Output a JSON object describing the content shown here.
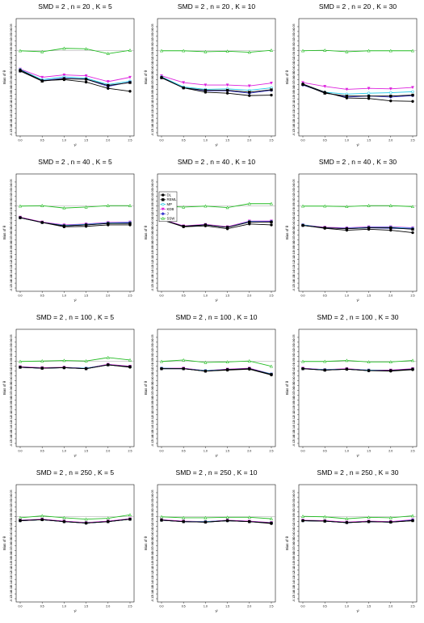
{
  "chart_data": {
    "type": "line",
    "x": [
      0.0,
      0.5,
      1.0,
      1.5,
      2.0,
      2.5
    ],
    "x_tick_labels": [
      "0.0",
      "0.5",
      "1.0",
      "1.5",
      "2.0",
      "2.5"
    ],
    "xlabel": "τ²",
    "ylabel": "Bias of θ",
    "ylim": [
      -0.17,
      0.06
    ],
    "y_ticks": [
      0.05,
      0.04,
      0.03,
      0.02,
      0.01,
      0.0,
      -0.01,
      -0.02,
      -0.03,
      -0.04,
      -0.05,
      -0.06,
      -0.07,
      -0.08,
      -0.09,
      -0.1,
      -0.11,
      -0.12,
      -0.13,
      -0.14,
      -0.15,
      -0.16,
      -0.17
    ],
    "y_tick_labels": [
      "0.05",
      "0.04",
      "0.03",
      "0.02",
      "0.01",
      "0.00",
      "-0.01",
      "-0.02",
      "-0.03",
      "-0.04",
      "-0.05",
      "-0.06",
      "-0.07",
      "-0.08",
      "-0.09",
      "-0.10",
      "-0.11",
      "-0.12",
      "-0.13",
      "-0.14",
      "-0.15",
      "-0.16",
      "-0.17"
    ],
    "reference_line": 0.0,
    "legend": {
      "placement": "left",
      "panel_index": 4,
      "entries": [
        {
          "label": "DL",
          "color": "#000000",
          "marker": "circle"
        },
        {
          "label": "REML",
          "color": "#000000",
          "marker": "square"
        },
        {
          "label": "MP",
          "color": "#1ec8e6",
          "marker": "circle-open"
        },
        {
          "label": "KDB",
          "color": "#dd22dd",
          "marker": "triangle-down"
        },
        {
          "label": "J",
          "color": "#3333cc",
          "marker": "diamond"
        },
        {
          "label": "SSW",
          "color": "#22bb22",
          "marker": "triangle-open"
        }
      ]
    },
    "panels": [
      {
        "title": "SMD = 2 , n = 20 , K = 5",
        "series": [
          {
            "values": [
              -0.04,
              -0.062,
              -0.06,
              -0.065,
              -0.078,
              -0.084
            ]
          },
          {
            "values": [
              -0.042,
              -0.063,
              -0.058,
              -0.059,
              -0.072,
              -0.066
            ]
          },
          {
            "values": [
              -0.039,
              -0.06,
              -0.054,
              -0.057,
              -0.07,
              -0.063
            ]
          },
          {
            "values": [
              -0.038,
              -0.055,
              -0.05,
              -0.052,
              -0.064,
              -0.055
            ]
          },
          {
            "values": [
              -0.042,
              -0.062,
              -0.057,
              -0.059,
              -0.074,
              -0.065
            ]
          },
          {
            "values": [
              0.0,
              -0.002,
              0.005,
              0.004,
              -0.006,
              0.001
            ]
          }
        ]
      },
      {
        "title": "SMD = 2 , n = 20 , K = 10",
        "series": [
          {
            "values": [
              -0.055,
              -0.077,
              -0.086,
              -0.088,
              -0.093,
              -0.092
            ]
          },
          {
            "values": [
              -0.056,
              -0.077,
              -0.082,
              -0.082,
              -0.086,
              -0.081
            ]
          },
          {
            "values": [
              -0.054,
              -0.075,
              -0.08,
              -0.079,
              -0.082,
              -0.077
            ]
          },
          {
            "values": [
              -0.052,
              -0.066,
              -0.071,
              -0.071,
              -0.073,
              -0.067
            ]
          },
          {
            "values": [
              -0.056,
              -0.077,
              -0.083,
              -0.083,
              -0.088,
              -0.082
            ]
          },
          {
            "values": [
              0.0,
              0.0,
              -0.002,
              -0.001,
              -0.003,
              0.001
            ]
          }
        ]
      },
      {
        "title": "SMD = 2 , n = 20 , K = 30",
        "series": [
          {
            "values": [
              -0.069,
              -0.086,
              -0.098,
              -0.099,
              -0.104,
              -0.105
            ]
          },
          {
            "values": [
              -0.07,
              -0.088,
              -0.094,
              -0.094,
              -0.094,
              -0.092
            ]
          },
          {
            "values": [
              -0.069,
              -0.086,
              -0.09,
              -0.088,
              -0.087,
              -0.085
            ]
          },
          {
            "values": [
              -0.066,
              -0.074,
              -0.08,
              -0.078,
              -0.079,
              -0.076
            ]
          },
          {
            "values": [
              -0.071,
              -0.087,
              -0.096,
              -0.094,
              -0.096,
              -0.093
            ]
          },
          {
            "values": [
              0.0,
              0.001,
              -0.002,
              0.0,
              0.0,
              0.0
            ]
          }
        ]
      },
      {
        "title": "SMD = 2 , n = 40 , K = 5",
        "series": [
          {
            "values": [
              -0.024,
              -0.034,
              -0.043,
              -0.042,
              -0.039,
              -0.039
            ]
          },
          {
            "values": [
              -0.024,
              -0.034,
              -0.041,
              -0.039,
              -0.036,
              -0.036
            ]
          },
          {
            "values": [
              -0.024,
              -0.034,
              -0.04,
              -0.038,
              -0.035,
              -0.034
            ]
          },
          {
            "values": [
              -0.023,
              -0.033,
              -0.039,
              -0.037,
              -0.034,
              -0.033
            ]
          },
          {
            "values": [
              -0.024,
              -0.034,
              -0.041,
              -0.039,
              -0.036,
              -0.035
            ]
          },
          {
            "values": [
              0.0,
              0.001,
              -0.004,
              -0.002,
              0.001,
              0.001
            ]
          }
        ]
      },
      {
        "title": "SMD = 2 , n = 40 , K = 10",
        "series": [
          {
            "values": [
              -0.028,
              -0.043,
              -0.041,
              -0.047,
              -0.037,
              -0.039
            ]
          },
          {
            "values": [
              -0.028,
              -0.042,
              -0.039,
              -0.044,
              -0.033,
              -0.033
            ]
          },
          {
            "values": [
              -0.028,
              -0.042,
              -0.039,
              -0.044,
              -0.032,
              -0.032
            ]
          },
          {
            "values": [
              -0.027,
              -0.041,
              -0.038,
              -0.043,
              -0.031,
              -0.031
            ]
          },
          {
            "values": [
              -0.028,
              -0.042,
              -0.039,
              -0.044,
              -0.033,
              -0.032
            ]
          },
          {
            "values": [
              0.0,
              -0.002,
              0.0,
              -0.003,
              0.005,
              0.005
            ]
          }
        ]
      },
      {
        "title": "SMD = 2 , n = 40 , K = 30",
        "series": [
          {
            "values": [
              -0.04,
              -0.046,
              -0.05,
              -0.048,
              -0.05,
              -0.055
            ]
          },
          {
            "values": [
              -0.04,
              -0.045,
              -0.047,
              -0.045,
              -0.045,
              -0.048
            ]
          },
          {
            "values": [
              -0.039,
              -0.045,
              -0.046,
              -0.044,
              -0.044,
              -0.046
            ]
          },
          {
            "values": [
              -0.039,
              -0.044,
              -0.045,
              -0.043,
              -0.043,
              -0.045
            ]
          },
          {
            "values": [
              -0.04,
              -0.045,
              -0.047,
              -0.045,
              -0.046,
              -0.047
            ]
          },
          {
            "values": [
              0.0,
              0.0,
              -0.001,
              0.001,
              0.001,
              -0.001
            ]
          }
        ]
      },
      {
        "title": "SMD = 2 , n = 100 , K = 5",
        "series": [
          {
            "values": [
              -0.012,
              -0.014,
              -0.013,
              -0.015,
              -0.007,
              -0.012
            ]
          },
          {
            "values": [
              -0.012,
              -0.014,
              -0.013,
              -0.015,
              -0.007,
              -0.011
            ]
          },
          {
            "values": [
              -0.012,
              -0.014,
              -0.013,
              -0.014,
              -0.007,
              -0.011
            ]
          },
          {
            "values": [
              -0.011,
              -0.013,
              -0.012,
              -0.014,
              -0.006,
              -0.01
            ]
          },
          {
            "values": [
              -0.012,
              -0.014,
              -0.013,
              -0.015,
              -0.007,
              -0.011
            ]
          },
          {
            "values": [
              0.0,
              0.001,
              0.002,
              0.001,
              0.008,
              0.003
            ]
          }
        ]
      },
      {
        "title": "SMD = 2 , n = 100 , K = 10",
        "series": [
          {
            "values": [
              -0.015,
              -0.015,
              -0.02,
              -0.018,
              -0.016,
              -0.028
            ]
          },
          {
            "values": [
              -0.015,
              -0.015,
              -0.02,
              -0.017,
              -0.015,
              -0.027
            ]
          },
          {
            "values": [
              -0.014,
              -0.015,
              -0.019,
              -0.017,
              -0.015,
              -0.026
            ]
          },
          {
            "values": [
              -0.014,
              -0.014,
              -0.019,
              -0.016,
              -0.014,
              -0.026
            ]
          },
          {
            "values": [
              -0.015,
              -0.015,
              -0.02,
              -0.017,
              -0.015,
              -0.027
            ]
          },
          {
            "values": [
              0.0,
              0.003,
              -0.002,
              -0.001,
              0.001,
              -0.01
            ]
          }
        ]
      },
      {
        "title": "SMD = 2 , n = 100 , K = 30",
        "series": [
          {
            "values": [
              -0.015,
              -0.018,
              -0.016,
              -0.019,
              -0.02,
              -0.017
            ]
          },
          {
            "values": [
              -0.015,
              -0.018,
              -0.016,
              -0.019,
              -0.019,
              -0.016
            ]
          },
          {
            "values": [
              -0.015,
              -0.017,
              -0.016,
              -0.018,
              -0.019,
              -0.016
            ]
          },
          {
            "values": [
              -0.014,
              -0.017,
              -0.015,
              -0.018,
              -0.018,
              -0.015
            ]
          },
          {
            "values": [
              -0.015,
              -0.018,
              -0.016,
              -0.019,
              -0.019,
              -0.016
            ]
          },
          {
            "values": [
              0.0,
              0.0,
              0.002,
              -0.001,
              -0.001,
              0.002
            ]
          }
        ]
      },
      {
        "title": "SMD = 2 , n = 250 , K = 5",
        "series": [
          {
            "values": [
              -0.008,
              -0.006,
              -0.01,
              -0.013,
              -0.01,
              -0.005
            ]
          },
          {
            "values": [
              -0.008,
              -0.006,
              -0.01,
              -0.013,
              -0.01,
              -0.005
            ]
          },
          {
            "values": [
              -0.008,
              -0.006,
              -0.01,
              -0.013,
              -0.01,
              -0.005
            ]
          },
          {
            "values": [
              -0.007,
              -0.005,
              -0.009,
              -0.012,
              -0.009,
              -0.004
            ]
          },
          {
            "values": [
              -0.008,
              -0.006,
              -0.01,
              -0.013,
              -0.01,
              -0.005
            ]
          },
          {
            "values": [
              -0.002,
              0.002,
              -0.002,
              -0.005,
              -0.003,
              0.004
            ]
          }
        ]
      },
      {
        "title": "SMD = 2 , n = 250 , K = 10",
        "series": [
          {
            "values": [
              -0.007,
              -0.01,
              -0.011,
              -0.008,
              -0.01,
              -0.014
            ]
          },
          {
            "values": [
              -0.007,
              -0.01,
              -0.011,
              -0.008,
              -0.01,
              -0.013
            ]
          },
          {
            "values": [
              -0.007,
              -0.01,
              -0.01,
              -0.008,
              -0.01,
              -0.013
            ]
          },
          {
            "values": [
              -0.006,
              -0.009,
              -0.01,
              -0.007,
              -0.009,
              -0.012
            ]
          },
          {
            "values": [
              -0.007,
              -0.01,
              -0.011,
              -0.008,
              -0.01,
              -0.013
            ]
          },
          {
            "values": [
              0.0,
              -0.002,
              -0.002,
              -0.001,
              -0.001,
              -0.004
            ]
          }
        ]
      },
      {
        "title": "SMD = 2 , n = 250 , K = 30",
        "series": [
          {
            "values": [
              -0.008,
              -0.009,
              -0.012,
              -0.01,
              -0.011,
              -0.008
            ]
          },
          {
            "values": [
              -0.008,
              -0.009,
              -0.012,
              -0.01,
              -0.011,
              -0.008
            ]
          },
          {
            "values": [
              -0.008,
              -0.009,
              -0.012,
              -0.01,
              -0.011,
              -0.007
            ]
          },
          {
            "values": [
              -0.007,
              -0.008,
              -0.011,
              -0.009,
              -0.01,
              -0.006
            ]
          },
          {
            "values": [
              -0.008,
              -0.009,
              -0.012,
              -0.01,
              -0.011,
              -0.007
            ]
          },
          {
            "values": [
              0.001,
              0.0,
              -0.004,
              -0.001,
              -0.002,
              0.002
            ]
          }
        ]
      }
    ]
  }
}
